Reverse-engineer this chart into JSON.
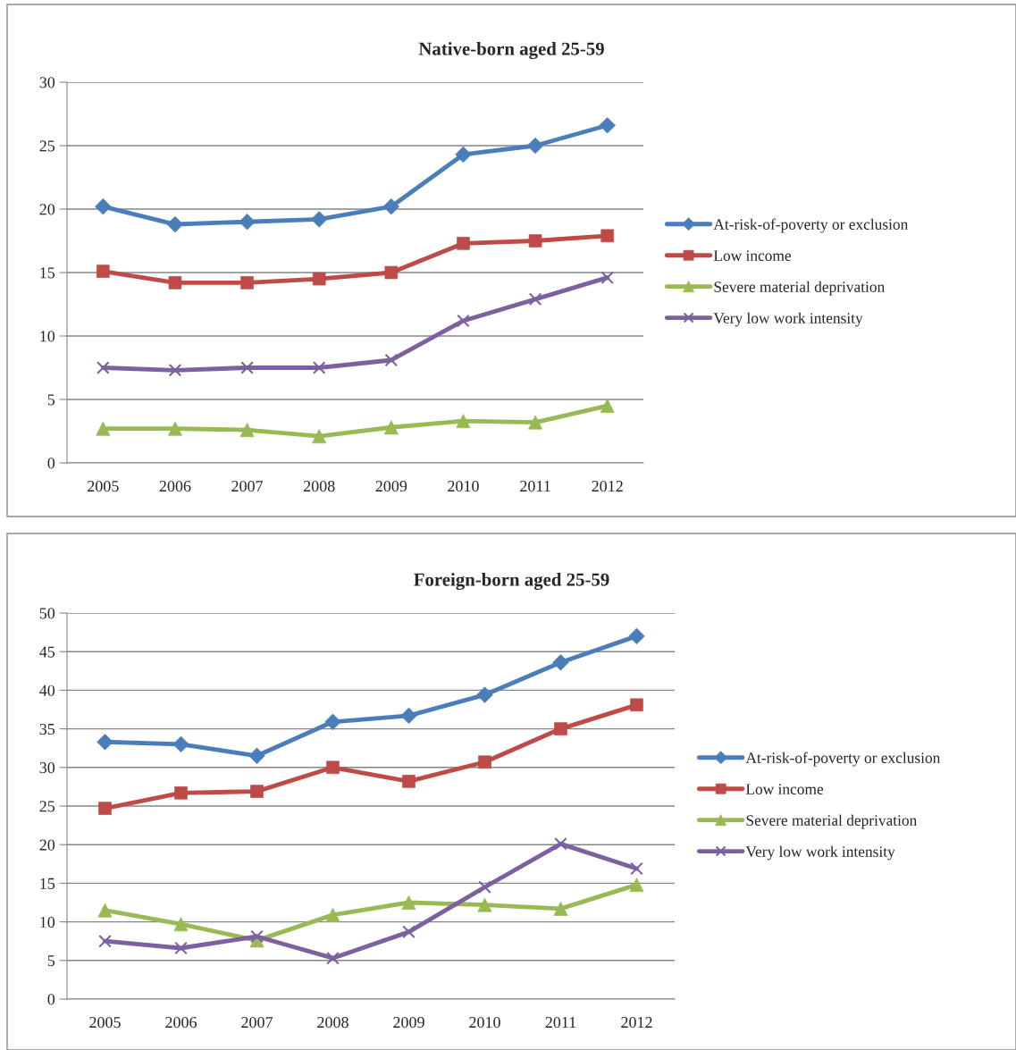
{
  "chart_data": [
    {
      "type": "line",
      "title": "Native-born aged 25-59",
      "categories": [
        "2005",
        "2006",
        "2007",
        "2008",
        "2009",
        "2010",
        "2011",
        "2012"
      ],
      "ylim": [
        0,
        30
      ],
      "yticks": [
        0,
        5,
        10,
        15,
        20,
        25,
        30
      ],
      "grid": "y",
      "legend": "right",
      "series": [
        {
          "name": "At-risk-of-poverty or exclusion",
          "color": "#4a7ebb",
          "marker": "diamond",
          "values": [
            20.2,
            18.8,
            19.0,
            19.2,
            20.2,
            24.3,
            25.0,
            26.6
          ]
        },
        {
          "name": "Low income",
          "color": "#be4b48",
          "marker": "square",
          "values": [
            15.1,
            14.2,
            14.2,
            14.5,
            15.0,
            17.3,
            17.5,
            17.9
          ]
        },
        {
          "name": "Severe material deprivation",
          "color": "#98b954",
          "marker": "triangle",
          "values": [
            2.7,
            2.7,
            2.6,
            2.1,
            2.8,
            3.3,
            3.2,
            4.5
          ]
        },
        {
          "name": "Very low work intensity",
          "color": "#7d60a0",
          "marker": "cross",
          "values": [
            7.5,
            7.3,
            7.5,
            7.5,
            8.1,
            11.2,
            12.9,
            14.6
          ]
        }
      ]
    },
    {
      "type": "line",
      "title": "Foreign-born aged 25-59",
      "categories": [
        "2005",
        "2006",
        "2007",
        "2008",
        "2009",
        "2010",
        "2011",
        "2012"
      ],
      "ylim": [
        0,
        50
      ],
      "yticks": [
        0,
        5,
        10,
        15,
        20,
        25,
        30,
        35,
        40,
        45,
        50
      ],
      "grid": "y",
      "legend": "right",
      "series": [
        {
          "name": "At-risk-of-poverty or exclusion",
          "color": "#4a7ebb",
          "marker": "diamond",
          "values": [
            33.3,
            33.0,
            31.5,
            35.9,
            36.7,
            39.4,
            43.6,
            47.0
          ]
        },
        {
          "name": "Low income",
          "color": "#be4b48",
          "marker": "square",
          "values": [
            24.7,
            26.7,
            26.9,
            30.0,
            28.2,
            30.7,
            35.0,
            38.1
          ]
        },
        {
          "name": "Severe material deprivation",
          "color": "#98b954",
          "marker": "triangle",
          "values": [
            11.5,
            9.7,
            7.6,
            10.9,
            12.5,
            12.2,
            11.7,
            14.8
          ]
        },
        {
          "name": "Very low work intensity",
          "color": "#7d60a0",
          "marker": "cross",
          "values": [
            7.5,
            6.6,
            8.1,
            5.3,
            8.7,
            14.5,
            20.1,
            16.9
          ]
        }
      ]
    }
  ]
}
